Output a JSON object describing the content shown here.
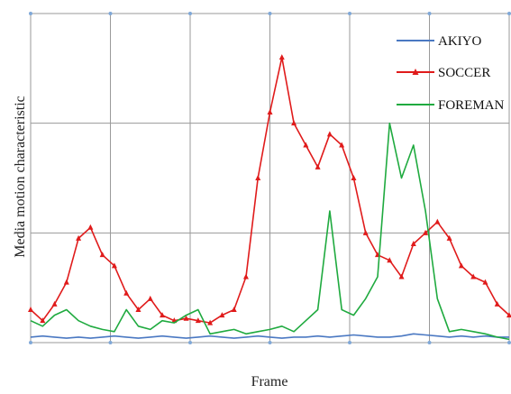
{
  "chart_data": {
    "type": "line",
    "title": "",
    "xlabel": "Frame",
    "ylabel": "Media motion characteristic",
    "xlim": [
      0,
      600
    ],
    "ylim": [
      0,
      300
    ],
    "grid": true,
    "legend_position": "top-right",
    "x": [
      0,
      15,
      30,
      45,
      60,
      75,
      90,
      105,
      120,
      135,
      150,
      165,
      180,
      195,
      210,
      225,
      240,
      255,
      270,
      285,
      300,
      315,
      330,
      345,
      360,
      375,
      390,
      405,
      420,
      435,
      450,
      465,
      480,
      495,
      510,
      525,
      540,
      555,
      570,
      585,
      600
    ],
    "series": [
      {
        "name": "AKIYO",
        "color": "#4a78c2",
        "marker": "none",
        "values": [
          5,
          6,
          5,
          4,
          5,
          4,
          5,
          6,
          5,
          4,
          5,
          6,
          5,
          4,
          5,
          6,
          5,
          4,
          5,
          6,
          5,
          4,
          5,
          5,
          6,
          5,
          6,
          7,
          6,
          5,
          5,
          6,
          8,
          7,
          6,
          5,
          6,
          5,
          6,
          5,
          5
        ]
      },
      {
        "name": "SOCCER",
        "color": "#e01b1b",
        "marker": "triangle",
        "values": [
          30,
          20,
          35,
          55,
          95,
          105,
          80,
          70,
          45,
          30,
          40,
          25,
          20,
          22,
          20,
          18,
          25,
          30,
          60,
          150,
          210,
          260,
          200,
          180,
          160,
          190,
          180,
          150,
          100,
          80,
          75,
          60,
          90,
          100,
          110,
          95,
          70,
          60,
          55,
          35,
          25
        ]
      },
      {
        "name": "FOREMAN",
        "color": "#1faa3f",
        "marker": "none",
        "values": [
          20,
          15,
          25,
          30,
          20,
          15,
          12,
          10,
          30,
          15,
          12,
          20,
          18,
          25,
          30,
          8,
          10,
          12,
          8,
          10,
          12,
          15,
          10,
          20,
          30,
          120,
          30,
          25,
          40,
          60,
          200,
          150,
          180,
          120,
          40,
          10,
          12,
          10,
          8,
          5,
          3
        ]
      }
    ]
  }
}
